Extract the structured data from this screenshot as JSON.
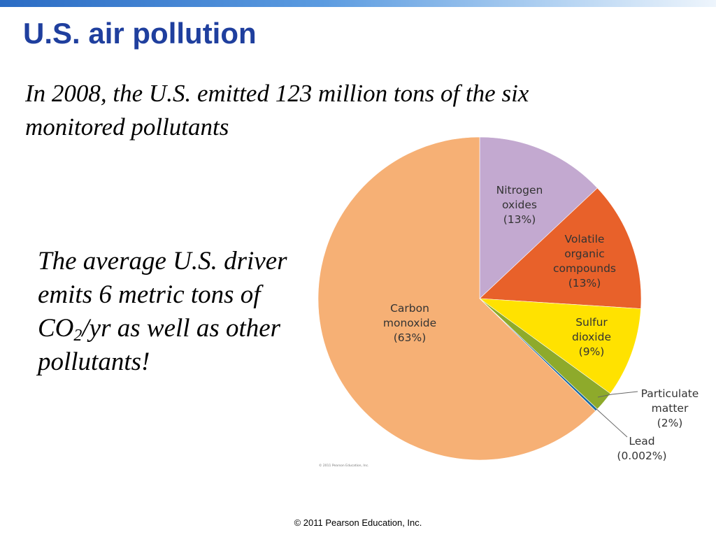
{
  "slide": {
    "title": "U.S. air pollution",
    "subtitle": "In 2008, the U.S. emitted 123 million tons of the six monitored pollutants",
    "note": {
      "pre": "The average U.S. driver emits 6 metric tons of CO",
      "sub": "2",
      "post": "/yr as well as other pollutants!"
    },
    "chart_credit": "© 2011 Pearson Education, Inc.",
    "footer": "© 2011 Pearson Education, Inc."
  },
  "chart_data": {
    "type": "pie",
    "title": "",
    "unit": "%",
    "slices": [
      {
        "name": "Nitrogen oxides",
        "value": 13,
        "label_lines": [
          "Nitrogen",
          "oxides",
          "(13%)"
        ],
        "color": "#c3a9d0",
        "label_side": "inside"
      },
      {
        "name": "Volatile organic compounds",
        "value": 13,
        "label_lines": [
          "Volatile",
          "organic",
          "compounds",
          "(13%)"
        ],
        "color": "#e8612a",
        "label_side": "inside"
      },
      {
        "name": "Sulfur dioxide",
        "value": 9,
        "label_lines": [
          "Sulfur",
          "dioxide",
          "(9%)"
        ],
        "color": "#ffe200",
        "label_side": "inside"
      },
      {
        "name": "Particulate matter",
        "value": 2,
        "label_lines": [
          "Particulate",
          "matter",
          "(2%)"
        ],
        "color": "#8eaa2b",
        "label_side": "outside"
      },
      {
        "name": "Lead",
        "value": 0.002,
        "label_lines": [
          "Lead",
          "(0.002%)"
        ],
        "color": "#1a6aa3",
        "label_side": "outside"
      },
      {
        "name": "Carbon monoxide",
        "value": 63,
        "label_lines": [
          "Carbon",
          "monoxide",
          "(63%)"
        ],
        "color": "#f6b075",
        "label_side": "inside"
      }
    ]
  }
}
